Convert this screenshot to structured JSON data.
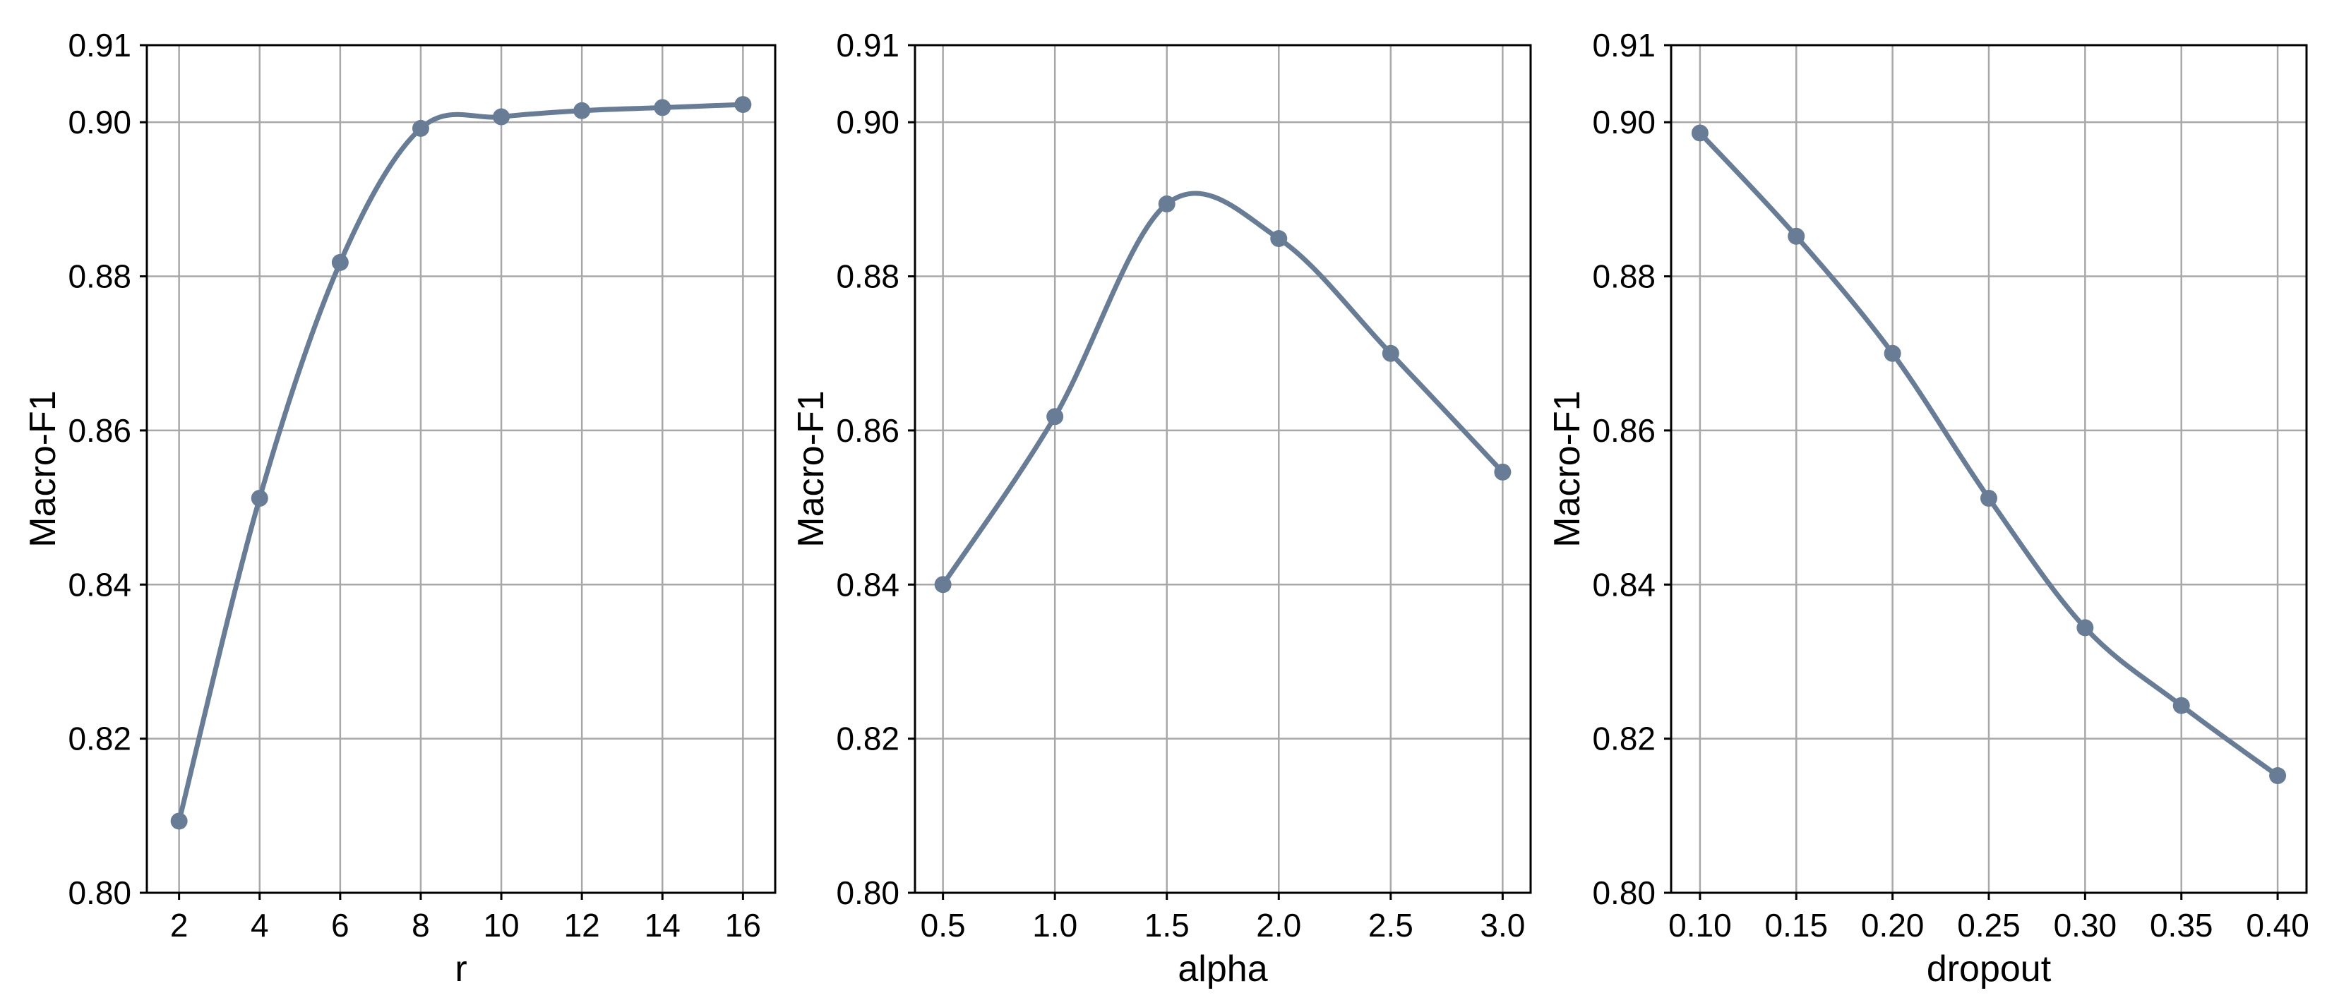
{
  "chart_data": [
    {
      "type": "line",
      "title": "",
      "xlabel": "r",
      "ylabel": "Macro-F1",
      "x": [
        2,
        4,
        6,
        8,
        10,
        12,
        14,
        16
      ],
      "x_tick_labels": [
        "2",
        "4",
        "6",
        "8",
        "10",
        "12",
        "14",
        "16"
      ],
      "xlim": [
        1.2,
        16.8
      ],
      "ylim": [
        0.8,
        0.91
      ],
      "y_ticks": [
        0.8,
        0.82,
        0.84,
        0.86,
        0.88,
        0.9,
        0.91
      ],
      "y_tick_labels": [
        "0.80",
        "0.82",
        "0.84",
        "0.86",
        "0.88",
        "0.90",
        "0.91"
      ],
      "grid": true,
      "series": [
        {
          "values": [
            0.8093,
            0.8512,
            0.8818,
            0.8992,
            0.9007,
            0.9015,
            0.9019,
            0.9023
          ]
        }
      ]
    },
    {
      "type": "line",
      "title": "",
      "xlabel": "alpha",
      "ylabel": "Macro-F1",
      "x": [
        0.5,
        1.0,
        1.5,
        2.0,
        2.5,
        3.0
      ],
      "x_tick_labels": [
        "0.5",
        "1.0",
        "1.5",
        "2.0",
        "2.5",
        "3.0"
      ],
      "xlim": [
        0.375,
        3.125
      ],
      "ylim": [
        0.8,
        0.91
      ],
      "y_ticks": [
        0.8,
        0.82,
        0.84,
        0.86,
        0.88,
        0.9,
        0.91
      ],
      "y_tick_labels": [
        "0.80",
        "0.82",
        "0.84",
        "0.86",
        "0.88",
        "0.90",
        "0.91"
      ],
      "grid": true,
      "series": [
        {
          "values": [
            0.84,
            0.8618,
            0.8894,
            0.8849,
            0.87,
            0.8546
          ]
        }
      ]
    },
    {
      "type": "line",
      "title": "",
      "xlabel": "dropout",
      "ylabel": "Macro-F1",
      "x": [
        0.1,
        0.15,
        0.2,
        0.25,
        0.3,
        0.35,
        0.4
      ],
      "x_tick_labels": [
        "0.10",
        "0.15",
        "0.20",
        "0.25",
        "0.30",
        "0.35",
        "0.40"
      ],
      "xlim": [
        0.085,
        0.415
      ],
      "ylim": [
        0.8,
        0.91
      ],
      "y_ticks": [
        0.8,
        0.82,
        0.84,
        0.86,
        0.88,
        0.9,
        0.91
      ],
      "y_tick_labels": [
        "0.80",
        "0.82",
        "0.84",
        "0.86",
        "0.88",
        "0.90",
        "0.91"
      ],
      "grid": true,
      "series": [
        {
          "values": [
            0.8986,
            0.8852,
            0.87,
            0.8512,
            0.8344,
            0.8243,
            0.8152
          ]
        }
      ]
    }
  ],
  "colors": {
    "line": "#687d95",
    "grid": "#a8a8a8",
    "frame": "#000000"
  }
}
